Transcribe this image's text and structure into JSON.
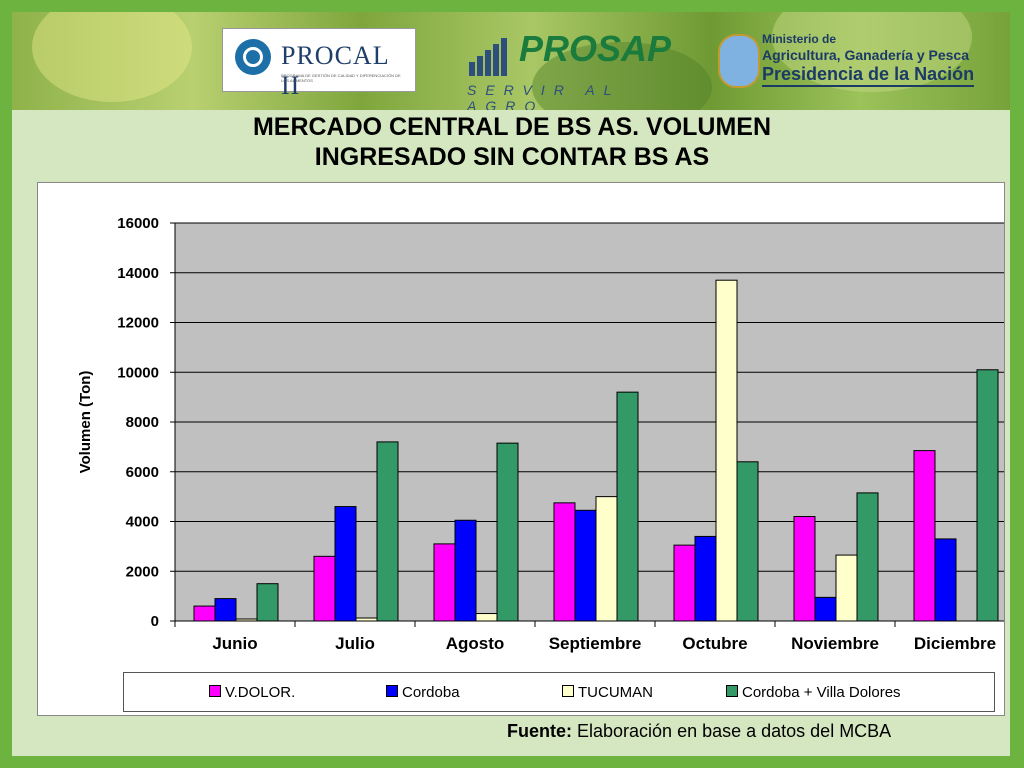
{
  "logos": {
    "procal": {
      "name": "PROCAL II",
      "subtitle": "PROGRAMA DE GESTIÓN DE CALIDAD Y DIFERENCIACIÓN DE LOS ALIMENTOS"
    },
    "prosap": {
      "name": "PROSAP",
      "tagline": "SERVIR AL AGRO"
    },
    "ministerio": {
      "line1": "Ministerio de",
      "line2": "Agricultura, Ganadería y Pesca",
      "line3": "Presidencia de la Nación"
    }
  },
  "title_line1": "MERCADO CENTRAL DE BS AS. VOLUMEN",
  "title_line2": "INGRESADO SIN CONTAR BS AS",
  "source": {
    "label": "Fuente:",
    "text": " Elaboración en base a datos del MCBA"
  },
  "colors": {
    "plot_bg": "#c0c0c0",
    "slide_bg": "#d5e7c0",
    "border_green": "#6db33f"
  },
  "chart_data": {
    "type": "bar",
    "title": "",
    "xlabel": "",
    "ylabel": "Volumen (Ton)",
    "ylim": [
      0,
      16000
    ],
    "yticks": [
      0,
      2000,
      4000,
      6000,
      8000,
      10000,
      12000,
      14000,
      16000
    ],
    "grid": true,
    "legend_position": "bottom",
    "categories": [
      "Junio",
      "Julio",
      "Agosto",
      "Septiembre",
      "Octubre",
      "Noviembre",
      "Diciembre"
    ],
    "series": [
      {
        "name": "V.DOLOR.",
        "color": "#ff00ff",
        "values": [
          600,
          2600,
          3100,
          4750,
          3050,
          4200,
          6850
        ]
      },
      {
        "name": "Cordoba",
        "color": "#0000ff",
        "values": [
          900,
          4600,
          4050,
          4450,
          3400,
          950,
          3300
        ]
      },
      {
        "name": "TUCUMAN",
        "color": "#ffffcc",
        "values": [
          80,
          120,
          300,
          5000,
          13700,
          2650,
          0
        ]
      },
      {
        "name": "Cordoba + Villa Dolores",
        "color": "#339966",
        "values": [
          1500,
          7200,
          7150,
          9200,
          6400,
          5150,
          10100
        ]
      }
    ]
  }
}
